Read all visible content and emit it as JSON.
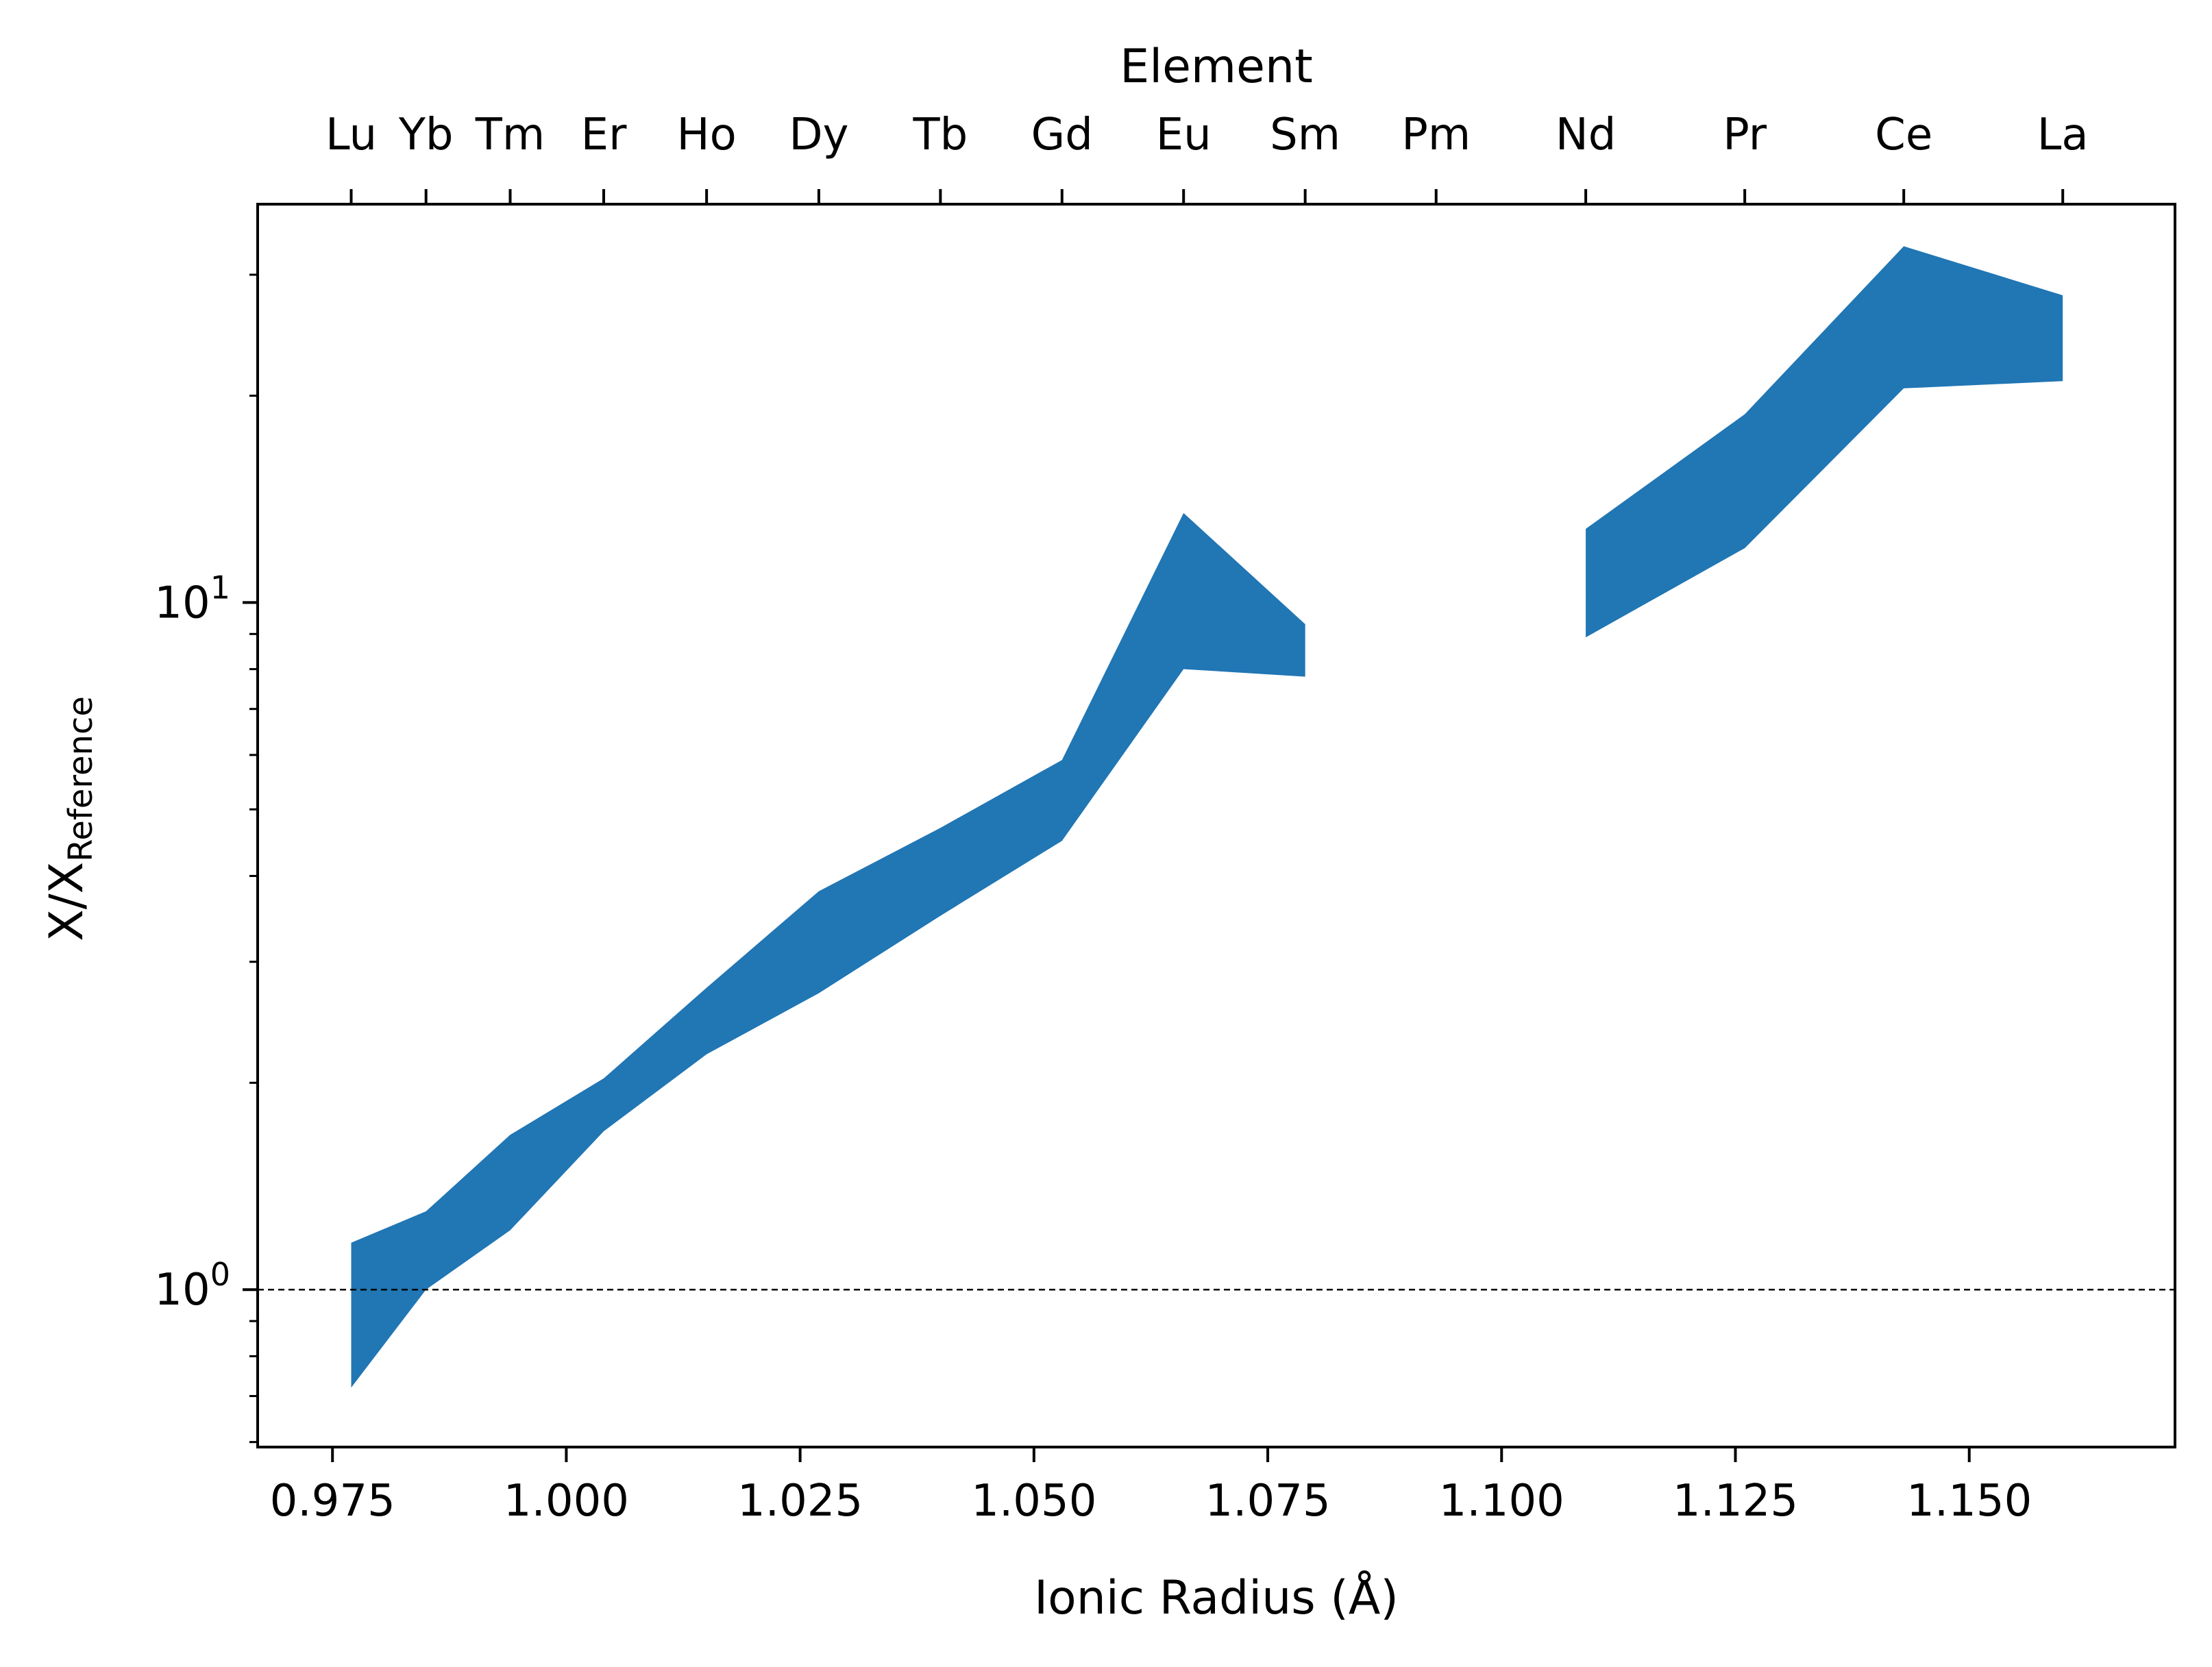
{
  "chart_data": {
    "type": "area",
    "xlabel": "Ionic Radius (Å)",
    "ylabel_main": "X/X",
    "ylabel_sub": "Reference",
    "top_label": "Element",
    "xlim": [
      0.967,
      1.172
    ],
    "ylim": [
      0.59,
      38
    ],
    "yscale": "log",
    "x_ticks": [
      "0.975",
      "1.000",
      "1.025",
      "1.050",
      "1.075",
      "1.100",
      "1.125",
      "1.150"
    ],
    "x_tick_values": [
      0.975,
      1.0,
      1.025,
      1.05,
      1.075,
      1.1,
      1.125,
      1.15
    ],
    "y_ticks": [
      {
        "value": 1,
        "base": "10",
        "exp": "0"
      },
      {
        "value": 10,
        "base": "10",
        "exp": "1"
      }
    ],
    "reference_line": 1,
    "elements": [
      {
        "name": "Lu",
        "x": 0.977
      },
      {
        "name": "Yb",
        "x": 0.985
      },
      {
        "name": "Tm",
        "x": 0.994
      },
      {
        "name": "Er",
        "x": 1.004
      },
      {
        "name": "Ho",
        "x": 1.015
      },
      {
        "name": "Dy",
        "x": 1.027
      },
      {
        "name": "Tb",
        "x": 1.04
      },
      {
        "name": "Gd",
        "x": 1.053
      },
      {
        "name": "Eu",
        "x": 1.066
      },
      {
        "name": "Sm",
        "x": 1.079
      },
      {
        "name": "Pm",
        "x": 1.093
      },
      {
        "name": "Nd",
        "x": 1.109
      },
      {
        "name": "Pr",
        "x": 1.126
      },
      {
        "name": "Ce",
        "x": 1.143
      },
      {
        "name": "La",
        "x": 1.16
      }
    ],
    "series": [
      {
        "segment": 1,
        "x": [
          0.977,
          0.985,
          0.994,
          1.004,
          1.015,
          1.027,
          1.04,
          1.053,
          1.066,
          1.079
        ],
        "lower": [
          0.72,
          1.0,
          1.22,
          1.7,
          2.2,
          2.7,
          3.5,
          4.5,
          8.0,
          7.8
        ],
        "upper": [
          1.17,
          1.3,
          1.68,
          2.03,
          2.75,
          3.8,
          4.7,
          5.9,
          13.5,
          9.3
        ]
      },
      {
        "segment": 2,
        "x": [
          1.109,
          1.126,
          1.143,
          1.16
        ],
        "lower": [
          8.9,
          12.0,
          20.5,
          21.0
        ],
        "upper": [
          12.8,
          18.8,
          33.0,
          28.0
        ]
      }
    ],
    "fill_color": "#2176b4",
    "grid": false
  }
}
